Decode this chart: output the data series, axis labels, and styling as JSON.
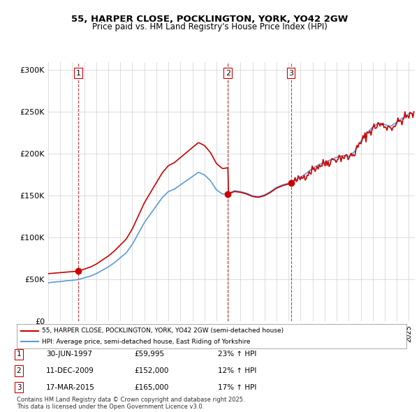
{
  "title1": "55, HARPER CLOSE, POCKLINGTON, YORK, YO42 2GW",
  "title2": "Price paid vs. HM Land Registry's House Price Index (HPI)",
  "ylabel_ticks": [
    "£0",
    "£50K",
    "£100K",
    "£150K",
    "£200K",
    "£250K",
    "£300K"
  ],
  "ytick_vals": [
    0,
    50000,
    100000,
    150000,
    200000,
    250000,
    300000
  ],
  "ylim": [
    0,
    310000
  ],
  "xlim_start": 1995.0,
  "xlim_end": 2025.5,
  "sale_dates": [
    1997.496,
    2009.945,
    2015.204
  ],
  "sale_prices": [
    59995,
    152000,
    165000
  ],
  "sale_labels": [
    "1",
    "2",
    "3"
  ],
  "legend_line1": "55, HARPER CLOSE, POCKLINGTON, YORK, YO42 2GW (semi-detached house)",
  "legend_line2": "HPI: Average price, semi-detached house, East Riding of Yorkshire",
  "table_rows": [
    [
      "1",
      "30-JUN-1997",
      "£59,995",
      "23% ↑ HPI"
    ],
    [
      "2",
      "11-DEC-2009",
      "£152,000",
      "12% ↑ HPI"
    ],
    [
      "3",
      "17-MAR-2015",
      "£165,000",
      "17% ↑ HPI"
    ]
  ],
  "footnote": "Contains HM Land Registry data © Crown copyright and database right 2025.\nThis data is licensed under the Open Government Licence v3.0.",
  "line_color_red": "#cc0000",
  "line_color_blue": "#5b9bd5",
  "vline_color": "#cc0000",
  "bg_color": "#ffffff",
  "grid_color": "#d0d0d0"
}
